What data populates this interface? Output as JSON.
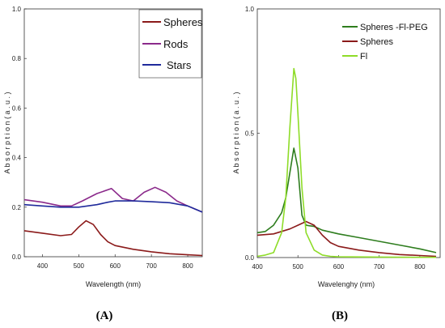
{
  "chart_data": [
    {
      "type": "line",
      "panel_label": "(A)",
      "xlabel": "Wavelength (nm)",
      "ylabel": "A b s o r p t i o n   ( a . u . )",
      "xlim": [
        350,
        840
      ],
      "ylim": [
        0,
        1.0
      ],
      "xticks": [
        400,
        500,
        600,
        700,
        800
      ],
      "yticks": [
        0.0,
        0.2,
        0.4,
        0.6,
        0.8,
        1.0
      ],
      "ytick_labels": [
        "0.0",
        "0.2",
        "0.4",
        "0.6",
        "0.8",
        "1.0"
      ],
      "grid": false,
      "legend_position": "top-right",
      "series": [
        {
          "name": "Spheres",
          "color": "#8b1a1a",
          "x": [
            350,
            400,
            450,
            480,
            500,
            520,
            540,
            560,
            580,
            600,
            650,
            700,
            750,
            800,
            840
          ],
          "y": [
            0.105,
            0.095,
            0.085,
            0.09,
            0.12,
            0.145,
            0.13,
            0.09,
            0.06,
            0.045,
            0.03,
            0.02,
            0.012,
            0.008,
            0.005
          ]
        },
        {
          "name": "Rods",
          "color": "#8b2a8b",
          "x": [
            350,
            400,
            450,
            480,
            510,
            550,
            590,
            620,
            650,
            680,
            710,
            740,
            770,
            800,
            840
          ],
          "y": [
            0.23,
            0.22,
            0.205,
            0.205,
            0.225,
            0.255,
            0.275,
            0.235,
            0.225,
            0.26,
            0.28,
            0.26,
            0.225,
            0.205,
            0.18
          ]
        },
        {
          "name": "Stars",
          "color": "#1f2a9b",
          "x": [
            350,
            400,
            450,
            500,
            550,
            580,
            600,
            650,
            700,
            750,
            800,
            840
          ],
          "y": [
            0.21,
            0.205,
            0.2,
            0.2,
            0.21,
            0.22,
            0.225,
            0.225,
            0.222,
            0.218,
            0.205,
            0.18
          ]
        }
      ]
    },
    {
      "type": "line",
      "panel_label": "(B)",
      "xlabel": "Wavelenghy (nm)",
      "ylabel": "A b s o r p t i o n   ( a . u . )",
      "xlim": [
        400,
        850
      ],
      "ylim": [
        0,
        1.0
      ],
      "xticks": [
        400,
        500,
        600,
        700,
        800
      ],
      "yticks": [
        0.0,
        0.5,
        1.0
      ],
      "ytick_labels": [
        "0.0",
        "0.5",
        "1.0"
      ],
      "grid": false,
      "legend_position": "top-right",
      "series": [
        {
          "name": "Spheres -Fl-PEG",
          "color": "#2e7d1e",
          "x": [
            400,
            420,
            440,
            460,
            470,
            480,
            490,
            500,
            510,
            520,
            540,
            560,
            600,
            650,
            700,
            750,
            800,
            840
          ],
          "y": [
            0.1,
            0.105,
            0.13,
            0.18,
            0.24,
            0.34,
            0.44,
            0.36,
            0.17,
            0.13,
            0.125,
            0.11,
            0.095,
            0.08,
            0.065,
            0.05,
            0.035,
            0.02
          ]
        },
        {
          "name": "Spheres",
          "color": "#8b1a1a",
          "x": [
            400,
            440,
            480,
            500,
            520,
            540,
            560,
            580,
            600,
            650,
            700,
            750,
            800,
            840
          ],
          "y": [
            0.09,
            0.095,
            0.115,
            0.13,
            0.145,
            0.13,
            0.09,
            0.06,
            0.045,
            0.03,
            0.02,
            0.012,
            0.008,
            0.005
          ]
        },
        {
          "name": "Fl",
          "color": "#8edc28",
          "x": [
            400,
            420,
            440,
            460,
            470,
            480,
            490,
            495,
            500,
            510,
            520,
            540,
            560,
            580,
            600,
            700,
            800,
            840
          ],
          "y": [
            0.005,
            0.01,
            0.02,
            0.1,
            0.24,
            0.52,
            0.76,
            0.72,
            0.58,
            0.28,
            0.1,
            0.03,
            0.01,
            0.005,
            0.003,
            0.002,
            0.001,
            0.001
          ]
        }
      ]
    }
  ]
}
